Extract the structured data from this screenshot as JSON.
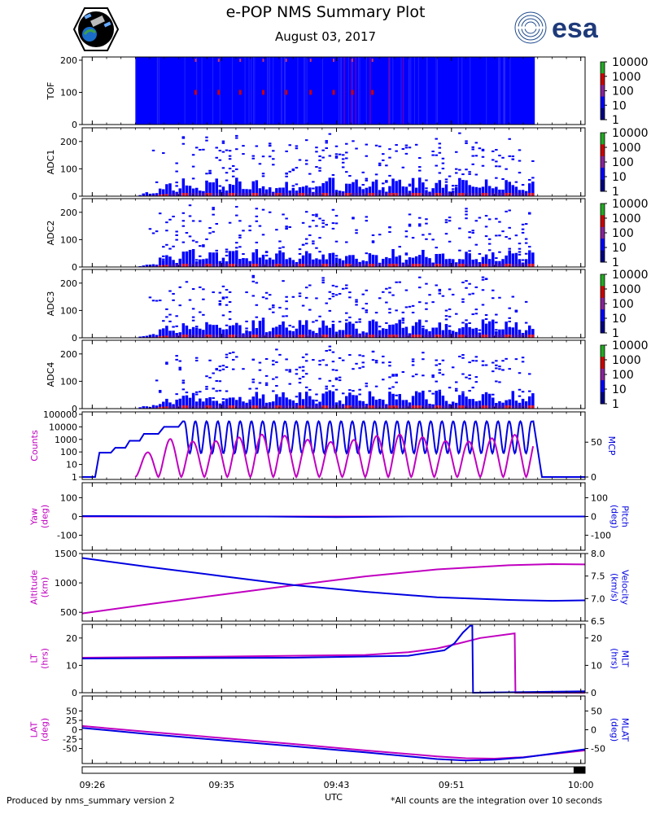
{
  "header": {
    "title": "e-POP NMS Summary Plot",
    "date": "August 03, 2017"
  },
  "logos": {
    "left": "epop-mission-patch",
    "right_text": "esa"
  },
  "footer": {
    "left": "Produced by nms_summary version 2",
    "right": "*All counts are the integration over 10 seconds"
  },
  "colors": {
    "magenta": "#c000c0",
    "blue": "#0000e0",
    "spectrogram_bg": "#0000ff",
    "hot": "#cc0000"
  },
  "chart_data": {
    "type": "multi-panel",
    "x_axis": {
      "label": "UTC",
      "range_min": [
        25.3,
        60.3
      ],
      "ticks": [
        {
          "min": 26,
          "label": "09:26"
        },
        {
          "min": 35,
          "label": "09:35"
        },
        {
          "min": 43,
          "label": "09:43"
        },
        {
          "min": 51,
          "label": "09:51"
        },
        {
          "min": 60,
          "label": "10:00"
        }
      ],
      "night_bar_min": [
        59.5,
        60.3
      ]
    },
    "colorbar": {
      "labels": [
        "10000",
        "1000",
        "100",
        "10",
        "1"
      ]
    },
    "spectrograms": [
      {
        "label": "TOF",
        "ylim": [
          0,
          210
        ],
        "yticks": [
          0,
          100,
          200
        ],
        "data_min": [
          29.0,
          56.8
        ],
        "kind": "tof",
        "hot_rows": [
          100
        ],
        "hot_cols_min": [
          33.2,
          34.8,
          36.3,
          37.9,
          39.5,
          41.2,
          42.8,
          44.1,
          45.5
        ]
      },
      {
        "label": "ADC1",
        "ylim": [
          0,
          250
        ],
        "yticks": [
          0,
          100,
          200
        ],
        "data_min": [
          29.0,
          56.8
        ],
        "kind": "adc"
      },
      {
        "label": "ADC2",
        "ylim": [
          0,
          250
        ],
        "yticks": [
          0,
          100,
          200
        ],
        "data_min": [
          29.0,
          56.8
        ],
        "kind": "adc"
      },
      {
        "label": "ADC3",
        "ylim": [
          0,
          250
        ],
        "yticks": [
          0,
          100,
          200
        ],
        "data_min": [
          29.0,
          56.8
        ],
        "kind": "adc"
      },
      {
        "label": "ADC4",
        "ylim": [
          0,
          250
        ],
        "yticks": [
          0,
          100,
          200
        ],
        "data_min": [
          29.0,
          56.8
        ],
        "kind": "adc"
      }
    ],
    "counts_mcp": {
      "left_label": "Counts",
      "right_label": "MCP",
      "left_scale": "log",
      "left_ticks": [
        "1",
        "10",
        "100",
        "1000",
        "10000",
        "100000"
      ],
      "right_ticks": [
        "0",
        "50"
      ],
      "mcp_points": [
        [
          25.3,
          0
        ],
        [
          26.2,
          0
        ],
        [
          26.5,
          35
        ],
        [
          27.3,
          35
        ],
        [
          27.6,
          42
        ],
        [
          28.3,
          42
        ],
        [
          28.6,
          52
        ],
        [
          29.3,
          52
        ],
        [
          29.6,
          62
        ],
        [
          30.6,
          62
        ],
        [
          31.0,
          72
        ],
        [
          32.0,
          72
        ],
        [
          32.3,
          80
        ],
        [
          56.7,
          80
        ],
        [
          57.3,
          0
        ],
        [
          60.3,
          0
        ]
      ],
      "mcp_osc_min": [
        32.4,
        56.6
      ],
      "mcp_osc_period": 0.78,
      "counts_start_min": 29.0,
      "counts_end_min": 56.7,
      "counts_period_min": 1.6
    },
    "panels": [
      {
        "left_label": "Yaw\n(deg)",
        "right_label": "Pitch\n(deg)",
        "ylim": [
          -180,
          180
        ],
        "left_ticks": [
          -100,
          0,
          100
        ],
        "right_ticks": [
          -100,
          0,
          100
        ],
        "series": [
          {
            "name": "Yaw",
            "color": "magenta",
            "axis": "left",
            "x": [
              25.3,
              60.3
            ],
            "y": [
              0,
              0
            ]
          },
          {
            "name": "Pitch",
            "color": "blue",
            "axis": "right",
            "x": [
              25.3,
              38,
              43,
              48,
              60.3
            ],
            "y": [
              2,
              0,
              -3,
              0,
              0
            ]
          }
        ]
      },
      {
        "left_label": "Altitude\n(km)",
        "right_label": "Velocity\n(km/s)",
        "ylim": [
          350,
          1500
        ],
        "right_lim": [
          6.5,
          8.0
        ],
        "left_ticks": [
          500,
          1000,
          1500
        ],
        "right_ticks": [
          6.5,
          7.0,
          7.5,
          8.0
        ],
        "series": [
          {
            "name": "Altitude",
            "color": "magenta",
            "axis": "left",
            "x": [
              25.3,
              30,
              35,
              40,
              45,
              50,
              55,
              58,
              60.3
            ],
            "y": [
              480,
              640,
              800,
              960,
              1110,
              1230,
              1300,
              1320,
              1315
            ]
          },
          {
            "name": "Velocity",
            "color": "blue",
            "axis": "right",
            "x": [
              25.3,
              30,
              35,
              40,
              45,
              50,
              55,
              58,
              60.3
            ],
            "y": [
              7.9,
              7.7,
              7.5,
              7.3,
              7.15,
              7.03,
              6.97,
              6.95,
              6.96
            ]
          }
        ]
      },
      {
        "left_label": "LT\n(hrs)",
        "right_label": "MLT\n(hrs)",
        "ylim": [
          0,
          25
        ],
        "left_ticks": [
          0,
          10,
          20
        ],
        "right_ticks": [
          0,
          10,
          20
        ],
        "series": [
          {
            "name": "LT",
            "color": "magenta",
            "axis": "left",
            "x": [
              25.3,
              35,
              45,
              48,
              50,
              51.5,
              53,
              55.4,
              55.45,
              60.3
            ],
            "y": [
              12.8,
              13.2,
              13.8,
              14.8,
              16.2,
              18.0,
              20.0,
              21.7,
              0,
              0
            ]
          },
          {
            "name": "MLT",
            "color": "blue",
            "axis": "right",
            "x": [
              25.3,
              40,
              48,
              50.5,
              51.2,
              51.8,
              52.3,
              52.45,
              52.5,
              60.3
            ],
            "y": [
              12.5,
              12.8,
              13.5,
              15.5,
              18.0,
              22.0,
              24.5,
              24.5,
              0,
              0.5
            ]
          }
        ]
      },
      {
        "left_label": "LAT\n(deg)",
        "right_label": "MLAT\n(deg)",
        "ylim": [
          -90,
          90
        ],
        "left_ticks": [
          -50,
          -25,
          0,
          25,
          50
        ],
        "right_ticks": [
          -50,
          0,
          50
        ],
        "series": [
          {
            "name": "LAT",
            "color": "magenta",
            "axis": "left",
            "x": [
              25.3,
              30,
              35,
              40,
              45,
              50,
              52,
              54,
              56,
              60.3
            ],
            "y": [
              10,
              -6,
              -22,
              -38,
              -55,
              -71,
              -76,
              -77,
              -73,
              -55
            ]
          },
          {
            "name": "MLAT",
            "color": "blue",
            "axis": "right",
            "x": [
              25.3,
              30,
              35,
              40,
              45,
              50,
              52,
              54,
              56,
              60.3
            ],
            "y": [
              5,
              -12,
              -28,
              -44,
              -60,
              -78,
              -82,
              -80,
              -74,
              -52
            ]
          }
        ]
      }
    ]
  }
}
